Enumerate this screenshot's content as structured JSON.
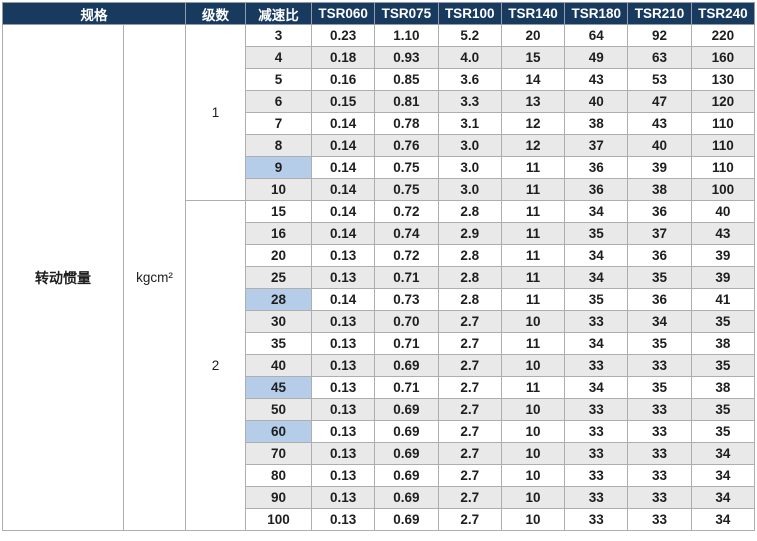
{
  "table": {
    "header": {
      "spec": "规格",
      "stage": "级数",
      "ratio": "减速比",
      "models": [
        "TSR060",
        "TSR075",
        "TSR100",
        "TSR140",
        "TSR180",
        "TSR210",
        "TSR240"
      ]
    },
    "spec_row_label": "转动惯量",
    "unit": "kgcm²",
    "groups": [
      {
        "stage": "1",
        "rows": [
          {
            "ratio": "3",
            "highlight": false,
            "values": [
              "0.23",
              "1.10",
              "5.2",
              "20",
              "64",
              "92",
              "220"
            ]
          },
          {
            "ratio": "4",
            "highlight": false,
            "values": [
              "0.18",
              "0.93",
              "4.0",
              "15",
              "49",
              "63",
              "160"
            ]
          },
          {
            "ratio": "5",
            "highlight": false,
            "values": [
              "0.16",
              "0.85",
              "3.6",
              "14",
              "43",
              "53",
              "130"
            ]
          },
          {
            "ratio": "6",
            "highlight": true,
            "values": [
              "0.15",
              "0.81",
              "3.3",
              "13",
              "40",
              "47",
              "120"
            ]
          },
          {
            "ratio": "7",
            "highlight": false,
            "values": [
              "0.14",
              "0.78",
              "3.1",
              "12",
              "38",
              "43",
              "110"
            ]
          },
          {
            "ratio": "8",
            "highlight": false,
            "values": [
              "0.14",
              "0.76",
              "3.0",
              "12",
              "37",
              "40",
              "110"
            ]
          },
          {
            "ratio": "9",
            "highlight": true,
            "values": [
              "0.14",
              "0.75",
              "3.0",
              "11",
              "36",
              "39",
              "110"
            ]
          },
          {
            "ratio": "10",
            "highlight": false,
            "values": [
              "0.14",
              "0.75",
              "3.0",
              "11",
              "36",
              "38",
              "100"
            ]
          }
        ]
      },
      {
        "stage": "2",
        "rows": [
          {
            "ratio": "15",
            "highlight": false,
            "values": [
              "0.14",
              "0.72",
              "2.8",
              "11",
              "34",
              "36",
              "40"
            ]
          },
          {
            "ratio": "16",
            "highlight": true,
            "values": [
              "0.14",
              "0.74",
              "2.9",
              "11",
              "35",
              "37",
              "43"
            ]
          },
          {
            "ratio": "20",
            "highlight": false,
            "values": [
              "0.13",
              "0.72",
              "2.8",
              "11",
              "34",
              "36",
              "39"
            ]
          },
          {
            "ratio": "25",
            "highlight": false,
            "values": [
              "0.13",
              "0.71",
              "2.8",
              "11",
              "34",
              "35",
              "39"
            ]
          },
          {
            "ratio": "28",
            "highlight": true,
            "values": [
              "0.14",
              "0.73",
              "2.8",
              "11",
              "35",
              "36",
              "41"
            ]
          },
          {
            "ratio": "30",
            "highlight": false,
            "values": [
              "0.13",
              "0.70",
              "2.7",
              "10",
              "33",
              "34",
              "35"
            ]
          },
          {
            "ratio": "35",
            "highlight": false,
            "values": [
              "0.13",
              "0.71",
              "2.7",
              "11",
              "34",
              "35",
              "38"
            ]
          },
          {
            "ratio": "40",
            "highlight": false,
            "values": [
              "0.13",
              "0.69",
              "2.7",
              "10",
              "33",
              "33",
              "35"
            ]
          },
          {
            "ratio": "45",
            "highlight": true,
            "values": [
              "0.13",
              "0.71",
              "2.7",
              "11",
              "34",
              "35",
              "38"
            ]
          },
          {
            "ratio": "50",
            "highlight": false,
            "values": [
              "0.13",
              "0.69",
              "2.7",
              "10",
              "33",
              "33",
              "35"
            ]
          },
          {
            "ratio": "60",
            "highlight": true,
            "values": [
              "0.13",
              "0.69",
              "2.7",
              "10",
              "33",
              "33",
              "35"
            ]
          },
          {
            "ratio": "70",
            "highlight": false,
            "values": [
              "0.13",
              "0.69",
              "2.7",
              "10",
              "33",
              "33",
              "34"
            ]
          },
          {
            "ratio": "80",
            "highlight": false,
            "values": [
              "0.13",
              "0.69",
              "2.7",
              "10",
              "33",
              "33",
              "34"
            ]
          },
          {
            "ratio": "90",
            "highlight": true,
            "values": [
              "0.13",
              "0.69",
              "2.7",
              "10",
              "33",
              "33",
              "34"
            ]
          },
          {
            "ratio": "100",
            "highlight": false,
            "values": [
              "0.13",
              "0.69",
              "2.7",
              "10",
              "33",
              "33",
              "34"
            ]
          }
        ]
      }
    ]
  },
  "colors": {
    "header_bg": "#183a5e",
    "header_text": "#ffffff",
    "alt_row_bg": "#e9e9e9",
    "highlight_bg": "#b6cde9",
    "body_border": "#aeaeae",
    "outer_border": "#8d8d8d",
    "text": "#1e1e1e"
  }
}
